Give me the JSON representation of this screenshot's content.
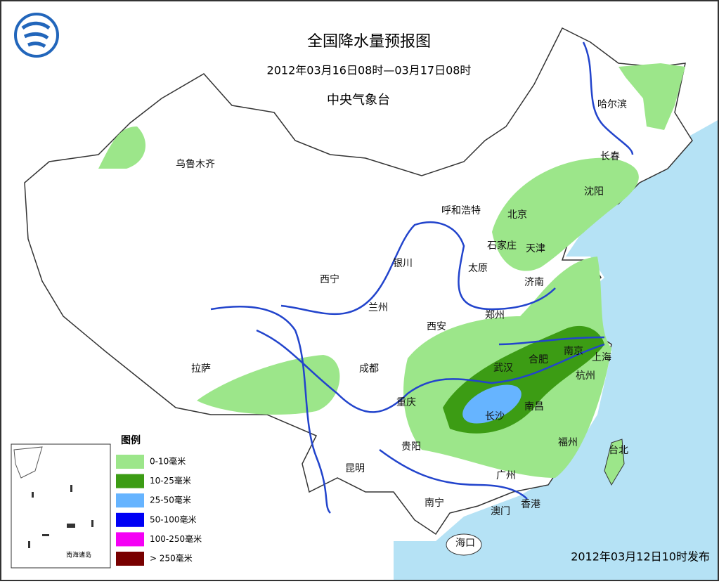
{
  "header": {
    "title": "全国降水量预报图",
    "subtitle": "2012年03月16日08时—03月17日08时",
    "issuer": "中央气象台"
  },
  "cities": [
    "乌鲁木齐",
    "哈尔滨",
    "长春",
    "沈阳",
    "呼和浩特",
    "北京",
    "天津",
    "石家庄",
    "太原",
    "银川",
    "济南",
    "西宁",
    "兰州",
    "郑州",
    "西安",
    "南京",
    "合肥",
    "上海",
    "武汉",
    "拉萨",
    "成都",
    "杭州",
    "重庆",
    "长沙",
    "南昌",
    "贵阳",
    "福州",
    "台北",
    "昆明",
    "广州",
    "南宁",
    "澳门",
    "香港",
    "海口"
  ],
  "legend": {
    "title": "图例",
    "items": [
      {
        "label": "0-10毫米",
        "color": "#9ce68a"
      },
      {
        "label": "10-25毫米",
        "color": "#3c9c14"
      },
      {
        "label": "25-50毫米",
        "color": "#66b4ff"
      },
      {
        "label": "50-100毫米",
        "color": "#0000f5"
      },
      {
        "label": "100-250毫米",
        "color": "#f500f5"
      },
      {
        "label": "> 250毫米",
        "color": "#780000"
      }
    ]
  },
  "inset_label": "南海诸岛",
  "issued": "2012年03月12日10时发布"
}
